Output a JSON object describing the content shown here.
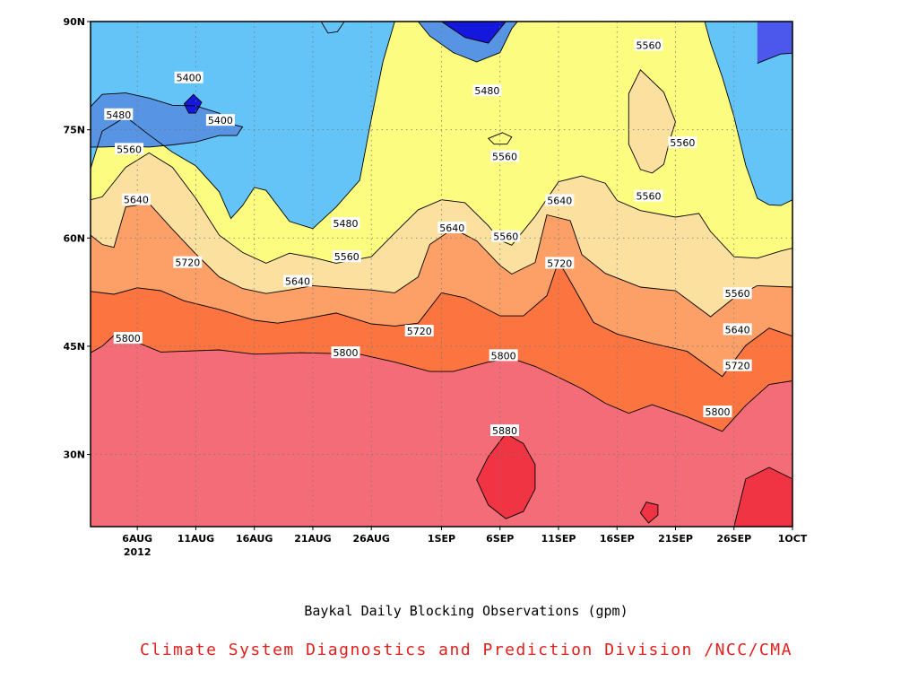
{
  "chart_data": {
    "type": "contour",
    "subtitle": "Baykal Daily Blocking Observations (gpm)",
    "credit": "Climate System Diagnostics and Prediction Division /NCC/CMA",
    "grid": true,
    "x_axis": {
      "range": [
        "2012-08-02",
        "2012-10-01"
      ],
      "ticks": [
        {
          "date": "2012-08-06",
          "label": "6AUG",
          "sublabel": "2012"
        },
        {
          "date": "2012-08-11",
          "label": "11AUG"
        },
        {
          "date": "2012-08-16",
          "label": "16AUG"
        },
        {
          "date": "2012-08-21",
          "label": "21AUG"
        },
        {
          "date": "2012-08-26",
          "label": "26AUG"
        },
        {
          "date": "2012-09-01",
          "label": "1SEP"
        },
        {
          "date": "2012-09-06",
          "label": "6SEP"
        },
        {
          "date": "2012-09-11",
          "label": "11SEP"
        },
        {
          "date": "2012-09-16",
          "label": "16SEP"
        },
        {
          "date": "2012-09-21",
          "label": "21SEP"
        },
        {
          "date": "2012-09-26",
          "label": "26SEP"
        },
        {
          "date": "2012-10-01",
          "label": "1OCT"
        }
      ]
    },
    "y_axis": {
      "range": [
        20,
        90
      ],
      "ticks": [
        {
          "value": 30,
          "label": "30N"
        },
        {
          "value": 45,
          "label": "45N"
        },
        {
          "value": 60,
          "label": "60N"
        },
        {
          "value": 75,
          "label": "75N"
        },
        {
          "value": 90,
          "label": "90N"
        }
      ]
    },
    "contour_levels": [
      5320,
      5400,
      5480,
      5560,
      5640,
      5720,
      5800,
      5880
    ],
    "fill_colors": {
      "below_5320": "#1418dc",
      "5320_5400": "#4c58ec",
      "5400_5480": "#5894e4",
      "5480_5560": "#64c4f8",
      "5560_5640": "#fcfc80",
      "5640_5720": "#fce0a0",
      "5720_5800": "#fca068",
      "5800_5880": "#fc7440",
      "5880_above": "#f46c78",
      "max": "#f03444"
    },
    "bands": [
      {
        "lower": 5800,
        "upper": 5880,
        "boundary": [
          [
            2,
            44.1
          ],
          [
            3,
            45
          ],
          [
            4,
            46.5
          ],
          [
            5,
            46.2
          ],
          [
            8,
            44.2
          ],
          [
            13,
            44.5
          ],
          [
            16,
            43.9
          ],
          [
            20,
            44.1
          ],
          [
            25,
            43.9
          ],
          [
            28,
            42.8
          ],
          [
            31,
            41.5
          ],
          [
            33,
            41.5
          ],
          [
            36,
            42.8
          ],
          [
            38,
            43.3
          ],
          [
            40,
            42.2
          ],
          [
            42,
            40.7
          ],
          [
            44,
            39.1
          ],
          [
            46,
            37.1
          ],
          [
            48,
            35.7
          ],
          [
            50,
            36.9
          ],
          [
            53,
            35.2
          ],
          [
            56,
            33.2
          ],
          [
            58,
            36.8
          ],
          [
            60,
            39.7
          ],
          [
            62,
            40.2
          ],
          [
            63,
            38.1
          ],
          [
            63.5,
            37.4
          ]
        ]
      },
      {
        "lower": 5720,
        "upper": 5800,
        "boundary": [
          [
            2,
            52.6
          ],
          [
            4,
            52.2
          ],
          [
            6,
            53.1
          ],
          [
            8,
            52.7
          ],
          [
            10,
            51.3
          ],
          [
            13,
            50.1
          ],
          [
            16,
            48.6
          ],
          [
            18,
            48.2
          ],
          [
            20,
            48.7
          ],
          [
            23,
            49.6
          ],
          [
            26,
            48.1
          ],
          [
            28,
            47.8
          ],
          [
            30,
            48.2
          ],
          [
            32,
            52.4
          ],
          [
            34,
            51.7
          ],
          [
            37,
            49.2
          ],
          [
            39,
            49.2
          ],
          [
            41,
            52
          ],
          [
            42,
            56.8
          ],
          [
            43,
            54
          ],
          [
            45,
            48.3
          ],
          [
            47,
            46.7
          ],
          [
            50,
            45.4
          ],
          [
            53,
            44.3
          ],
          [
            56,
            40.8
          ],
          [
            58,
            45.1
          ],
          [
            60,
            47.5
          ],
          [
            62,
            46.4
          ],
          [
            63.5,
            43.8
          ]
        ]
      },
      {
        "lower": 5640,
        "upper": 5720,
        "boundary": [
          [
            2,
            60.4
          ],
          [
            3,
            59.1
          ],
          [
            4,
            58.7
          ],
          [
            5,
            64.3
          ],
          [
            7,
            64.8
          ],
          [
            9,
            61.2
          ],
          [
            11,
            57.8
          ],
          [
            13,
            54.6
          ],
          [
            15,
            53
          ],
          [
            17,
            52.3
          ],
          [
            19,
            52.8
          ],
          [
            21,
            53.4
          ],
          [
            24,
            53
          ],
          [
            26,
            52.8
          ],
          [
            28,
            52.4
          ],
          [
            30,
            54.6
          ],
          [
            31,
            59.1
          ],
          [
            33,
            61.3
          ],
          [
            35,
            59.6
          ],
          [
            37,
            56.2
          ],
          [
            38,
            55
          ],
          [
            40,
            56.6
          ],
          [
            41,
            63.2
          ],
          [
            43,
            62.4
          ],
          [
            44,
            57.7
          ],
          [
            46,
            55.1
          ],
          [
            49,
            53.2
          ],
          [
            52,
            52.7
          ],
          [
            55,
            49.1
          ],
          [
            57,
            51.7
          ],
          [
            59,
            53.4
          ],
          [
            63.5,
            53.1
          ]
        ]
      },
      {
        "lower": 5560,
        "upper": 5640,
        "boundary": [
          [
            2,
            65.3
          ],
          [
            3,
            65.7
          ],
          [
            5,
            69.8
          ],
          [
            7,
            71.8
          ],
          [
            9,
            69.8
          ],
          [
            11,
            65.5
          ],
          [
            13,
            60.4
          ],
          [
            15,
            58
          ],
          [
            17,
            56.5
          ],
          [
            19,
            57.9
          ],
          [
            21,
            57.3
          ],
          [
            23,
            56.5
          ],
          [
            26,
            57.4
          ],
          [
            28,
            60.7
          ],
          [
            30,
            63.9
          ],
          [
            32,
            65.3
          ],
          [
            34,
            64.9
          ],
          [
            36,
            61.7
          ],
          [
            37,
            59.7
          ],
          [
            38,
            59
          ],
          [
            40,
            63
          ],
          [
            42,
            67.8
          ],
          [
            44,
            68.6
          ],
          [
            46,
            67.6
          ],
          [
            47,
            65.2
          ],
          [
            49,
            63.8
          ],
          [
            52,
            62.9
          ],
          [
            54,
            63.4
          ],
          [
            55,
            60.9
          ],
          [
            57,
            57.4
          ],
          [
            59,
            57.2
          ],
          [
            61,
            58.2
          ],
          [
            63.5,
            59.2
          ]
        ]
      },
      {
        "lower": 5480,
        "upper": 5560,
        "boundary": [
          [
            2,
            69.6
          ],
          [
            3,
            74.8
          ],
          [
            5,
            76.8
          ],
          [
            7,
            74.3
          ],
          [
            9,
            71.9
          ],
          [
            11,
            70
          ],
          [
            13,
            66.4
          ],
          [
            14,
            62.7
          ],
          [
            15,
            64.5
          ],
          [
            16,
            67
          ],
          [
            17,
            66.6
          ],
          [
            19,
            62.3
          ],
          [
            21,
            61.3
          ],
          [
            23,
            64.3
          ],
          [
            25,
            68
          ],
          [
            26,
            76.5
          ],
          [
            27,
            84.5
          ],
          [
            28,
            90
          ],
          [
            54.5,
            90
          ],
          [
            55,
            87
          ],
          [
            56,
            82.3
          ],
          [
            57,
            76.8
          ],
          [
            58,
            70.1
          ],
          [
            59,
            65.5
          ],
          [
            60,
            64.6
          ],
          [
            61,
            64.5
          ],
          [
            62,
            65.3
          ],
          [
            63.5,
            63.4
          ]
        ]
      },
      {
        "lower": 5400,
        "upper": 5480,
        "boundary": [
          [
            2,
            78.2
          ],
          [
            3,
            79.9
          ],
          [
            5,
            80.1
          ],
          [
            7,
            79.4
          ],
          [
            9,
            78.4
          ],
          [
            11,
            78.3
          ],
          [
            13,
            77.3
          ],
          [
            14,
            75.8
          ],
          [
            15,
            75.4
          ],
          [
            14.5,
            74.2
          ],
          [
            13,
            74.2
          ],
          [
            11,
            73.3
          ],
          [
            9,
            72.9
          ],
          [
            7,
            72.6
          ],
          [
            5,
            72.7
          ],
          [
            3,
            72.6
          ],
          [
            2,
            72.6
          ]
        ]
      },
      {
        "lower": 5320,
        "upper": 5400,
        "boundary": [
          [
            59,
            84.2
          ],
          [
            61,
            85.5
          ],
          [
            63.5,
            85.8
          ]
        ]
      }
    ],
    "closed_contours": [
      {
        "level": 5640,
        "region": [
          [
            48,
            73
          ],
          [
            49,
            69.5
          ],
          [
            50,
            69
          ],
          [
            51,
            70.2
          ],
          [
            51.5,
            73.5
          ],
          [
            52,
            76.1
          ],
          [
            51,
            80.2
          ],
          [
            49,
            83.3
          ],
          [
            48,
            80
          ]
        ]
      },
      {
        "level": 5880,
        "region": [
          [
            36,
            29.7
          ],
          [
            37.5,
            32.9
          ],
          [
            39,
            31.5
          ],
          [
            40,
            28.6
          ],
          [
            40,
            25.2
          ],
          [
            39,
            22.1
          ],
          [
            37.5,
            21.1
          ],
          [
            36,
            23
          ],
          [
            35,
            26.5
          ]
        ]
      },
      {
        "level": 5880,
        "region": [
          [
            57,
            20
          ],
          [
            58,
            26.6
          ],
          [
            60,
            28.2
          ],
          [
            62,
            26.6
          ],
          [
            63.5,
            23.6
          ],
          [
            63.5,
            20
          ]
        ]
      },
      {
        "level": 5880,
        "region": [
          [
            49,
            21.9
          ],
          [
            49.5,
            23.4
          ],
          [
            50.5,
            23
          ],
          [
            50.5,
            21.6
          ],
          [
            49.7,
            20.5
          ]
        ]
      },
      {
        "level": 5320,
        "region": [
          [
            10,
            78.6
          ],
          [
            10.8,
            79.9
          ],
          [
            11.5,
            78.8
          ],
          [
            11,
            77.3
          ],
          [
            10.4,
            77.3
          ]
        ]
      },
      {
        "level": 5400,
        "region": [
          [
            30,
            90
          ],
          [
            31,
            88
          ],
          [
            33,
            85.7
          ],
          [
            35,
            84.4
          ],
          [
            37,
            85.7
          ],
          [
            38,
            89
          ],
          [
            38.5,
            90
          ]
        ]
      },
      {
        "level": 5320,
        "region": [
          [
            32,
            90
          ],
          [
            34,
            87.8
          ],
          [
            36,
            87
          ],
          [
            37,
            89
          ],
          [
            37.5,
            90
          ]
        ]
      },
      {
        "level": 5480,
        "region": [
          [
            21.7,
            90
          ],
          [
            22.3,
            88.4
          ],
          [
            23.1,
            88.6
          ],
          [
            23.7,
            90
          ]
        ]
      },
      {
        "level": 5560,
        "region": [
          [
            36,
            73.8
          ],
          [
            37.2,
            74.6
          ],
          [
            38,
            74
          ],
          [
            37.6,
            73
          ],
          [
            36.5,
            73
          ]
        ]
      }
    ],
    "contour_labels": [
      {
        "text": "5400",
        "lon": 10.4,
        "lat": 82.2
      },
      {
        "text": "5400",
        "lon": 13.1,
        "lat": 76.3
      },
      {
        "text": "5480",
        "lon": 4.4,
        "lat": 77.1
      },
      {
        "text": "5560",
        "lon": 5.3,
        "lat": 72.3
      },
      {
        "text": "5640",
        "lon": 5.9,
        "lat": 65.3
      },
      {
        "text": "5720",
        "lon": 10.3,
        "lat": 56.6
      },
      {
        "text": "5800",
        "lon": 5.2,
        "lat": 46.1
      },
      {
        "text": "5480",
        "lon": 23.8,
        "lat": 62
      },
      {
        "text": "5560",
        "lon": 23.9,
        "lat": 57.4
      },
      {
        "text": "5640",
        "lon": 19.7,
        "lat": 54
      },
      {
        "text": "5800",
        "lon": 23.8,
        "lat": 44.1
      },
      {
        "text": "5720",
        "lon": 30.1,
        "lat": 47.1
      },
      {
        "text": "5480",
        "lon": 35.9,
        "lat": 80.4
      },
      {
        "text": "5560",
        "lon": 37.4,
        "lat": 71.3
      },
      {
        "text": "5640",
        "lon": 32.9,
        "lat": 61.4
      },
      {
        "text": "5560",
        "lon": 37.5,
        "lat": 60.2
      },
      {
        "text": "5800",
        "lon": 37.3,
        "lat": 43.7
      },
      {
        "text": "5880",
        "lon": 37.4,
        "lat": 33.3
      },
      {
        "text": "5640",
        "lon": 42.1,
        "lat": 65.2
      },
      {
        "text": "5720",
        "lon": 42.1,
        "lat": 56.5
      },
      {
        "text": "5560",
        "lon": 49.7,
        "lat": 86.7
      },
      {
        "text": "5560",
        "lon": 52.6,
        "lat": 73.2
      },
      {
        "text": "5560",
        "lon": 49.7,
        "lat": 65.8
      },
      {
        "text": "5560",
        "lon": 57.3,
        "lat": 52.3
      },
      {
        "text": "5640",
        "lon": 57.3,
        "lat": 47.3
      },
      {
        "text": "5720",
        "lon": 57.3,
        "lat": 42.3
      },
      {
        "text": "5800",
        "lon": 55.6,
        "lat": 35.9
      }
    ]
  }
}
